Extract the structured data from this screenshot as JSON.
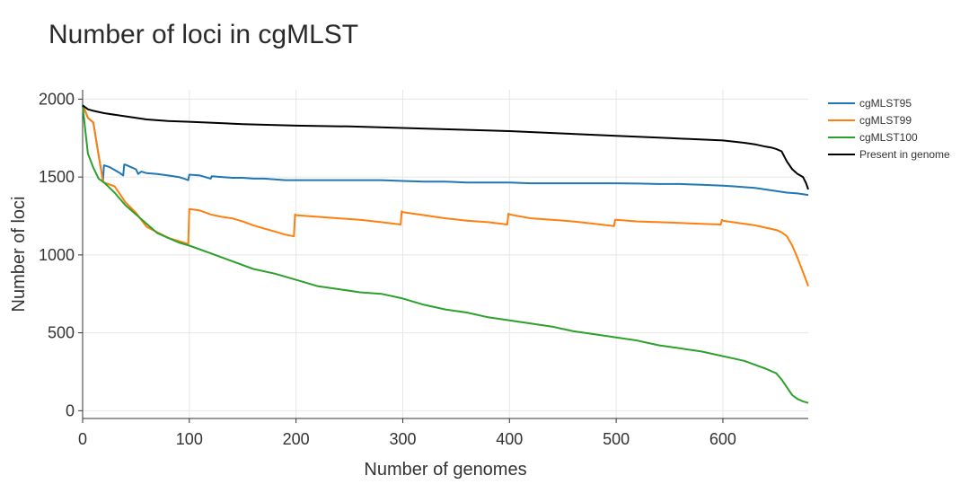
{
  "chart_data": {
    "type": "line",
    "title": "Number of loci in cgMLST",
    "xlabel": "Number of genomes",
    "ylabel": "Number of loci",
    "xlim": [
      0,
      680
    ],
    "ylim": [
      -50,
      2060
    ],
    "xticks": [
      0,
      100,
      200,
      300,
      400,
      500,
      600
    ],
    "yticks": [
      0,
      500,
      1000,
      1500,
      2000
    ],
    "grid": true,
    "legend_position": "top-right",
    "series": [
      {
        "name": "cgMLST95",
        "color": "#1f77b4",
        "x": [
          0,
          2,
          5,
          10,
          15,
          18,
          19,
          20,
          25,
          30,
          35,
          38,
          39,
          40,
          45,
          50,
          52,
          55,
          60,
          70,
          80,
          90,
          95,
          99,
          100,
          110,
          120,
          121,
          130,
          140,
          150,
          160,
          170,
          180,
          190,
          200,
          220,
          240,
          260,
          280,
          300,
          320,
          340,
          360,
          380,
          400,
          420,
          440,
          460,
          480,
          500,
          520,
          540,
          560,
          580,
          600,
          610,
          620,
          630,
          640,
          650,
          660,
          670,
          680
        ],
        "y": [
          1960,
          1930,
          1880,
          1850,
          1640,
          1520,
          1470,
          1575,
          1565,
          1545,
          1525,
          1510,
          1580,
          1580,
          1565,
          1550,
          1520,
          1535,
          1525,
          1520,
          1510,
          1500,
          1490,
          1480,
          1515,
          1510,
          1490,
          1505,
          1500,
          1495,
          1495,
          1490,
          1490,
          1485,
          1480,
          1480,
          1480,
          1480,
          1480,
          1480,
          1475,
          1470,
          1470,
          1465,
          1465,
          1465,
          1460,
          1460,
          1460,
          1460,
          1460,
          1458,
          1455,
          1455,
          1450,
          1445,
          1440,
          1435,
          1430,
          1420,
          1410,
          1400,
          1395,
          1385
        ]
      },
      {
        "name": "cgMLST99",
        "color": "#ff7f0e",
        "x": [
          0,
          2,
          5,
          10,
          15,
          18,
          19,
          20,
          30,
          40,
          50,
          60,
          80,
          99,
          100,
          110,
          120,
          130,
          140,
          150,
          160,
          170,
          180,
          190,
          198,
          199,
          200,
          220,
          240,
          260,
          280,
          298,
          299,
          300,
          320,
          340,
          360,
          380,
          398,
          399,
          400,
          420,
          440,
          460,
          480,
          498,
          499,
          500,
          520,
          540,
          560,
          580,
          598,
          599,
          600,
          620,
          630,
          640,
          650,
          655,
          660,
          665,
          670,
          675,
          680
        ],
        "y": [
          1960,
          1930,
          1880,
          1850,
          1640,
          1520,
          1470,
          1465,
          1440,
          1340,
          1270,
          1180,
          1110,
          1070,
          1295,
          1285,
          1260,
          1245,
          1235,
          1215,
          1190,
          1170,
          1150,
          1130,
          1120,
          1260,
          1255,
          1245,
          1235,
          1225,
          1210,
          1195,
          1280,
          1275,
          1255,
          1235,
          1220,
          1210,
          1195,
          1265,
          1260,
          1235,
          1225,
          1215,
          1200,
          1185,
          1225,
          1225,
          1215,
          1210,
          1205,
          1200,
          1195,
          1225,
          1220,
          1200,
          1190,
          1175,
          1160,
          1145,
          1120,
          1060,
          980,
          890,
          800
        ]
      },
      {
        "name": "cgMLST100",
        "color": "#2ca02c",
        "x": [
          0,
          2,
          5,
          10,
          15,
          18,
          19,
          20,
          30,
          40,
          50,
          60,
          70,
          80,
          90,
          100,
          120,
          140,
          160,
          180,
          200,
          220,
          240,
          260,
          280,
          300,
          320,
          340,
          360,
          380,
          400,
          420,
          440,
          460,
          480,
          500,
          520,
          540,
          560,
          580,
          600,
          610,
          620,
          630,
          640,
          650,
          655,
          660,
          665,
          670,
          675,
          680
        ],
        "y": [
          1960,
          1830,
          1650,
          1560,
          1490,
          1475,
          1470,
          1465,
          1400,
          1320,
          1260,
          1200,
          1140,
          1110,
          1080,
          1060,
          1010,
          960,
          910,
          880,
          840,
          800,
          780,
          760,
          750,
          720,
          680,
          650,
          630,
          600,
          580,
          560,
          540,
          510,
          490,
          470,
          450,
          420,
          400,
          380,
          350,
          335,
          320,
          295,
          270,
          240,
          200,
          150,
          100,
          75,
          60,
          50
        ]
      },
      {
        "name": "Present in genome",
        "color": "#000000",
        "x": [
          0,
          2,
          5,
          10,
          20,
          40,
          60,
          80,
          100,
          150,
          200,
          250,
          300,
          350,
          400,
          450,
          500,
          550,
          600,
          620,
          630,
          640,
          645,
          650,
          655,
          660,
          665,
          670,
          675,
          678,
          680
        ],
        "y": [
          1960,
          1950,
          1935,
          1925,
          1910,
          1890,
          1870,
          1860,
          1855,
          1840,
          1830,
          1825,
          1815,
          1805,
          1795,
          1780,
          1765,
          1750,
          1735,
          1720,
          1710,
          1695,
          1690,
          1680,
          1665,
          1600,
          1550,
          1520,
          1500,
          1460,
          1420
        ]
      }
    ]
  }
}
